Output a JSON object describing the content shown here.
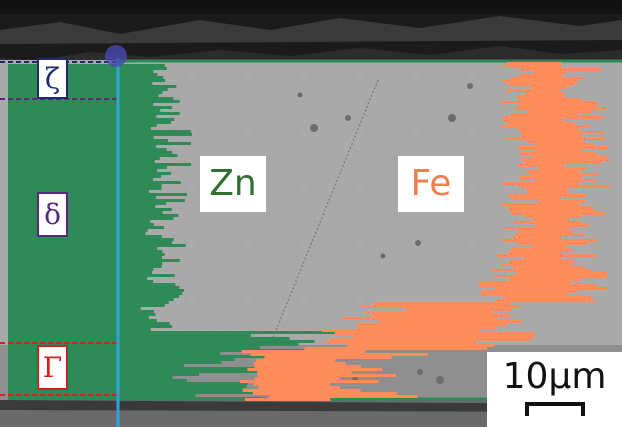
{
  "image": {
    "description_labels": {
      "zn": "Zn",
      "fe": "Fe"
    },
    "phases": {
      "zeta": "ζ",
      "delta": "δ",
      "gamma": "Γ"
    },
    "scale_bar": {
      "text": "10μm"
    }
  },
  "colors": {
    "zn_trace": "#2e8b57",
    "fe_trace": "#ff8c5a",
    "scan_line": "#2aa7d8",
    "zeta_box": "#1e2a6e",
    "delta_box": "#5a2a7a",
    "gamma_box": "#d42020",
    "zn_text": "#2f6f2f",
    "fe_text": "#f08050"
  }
}
